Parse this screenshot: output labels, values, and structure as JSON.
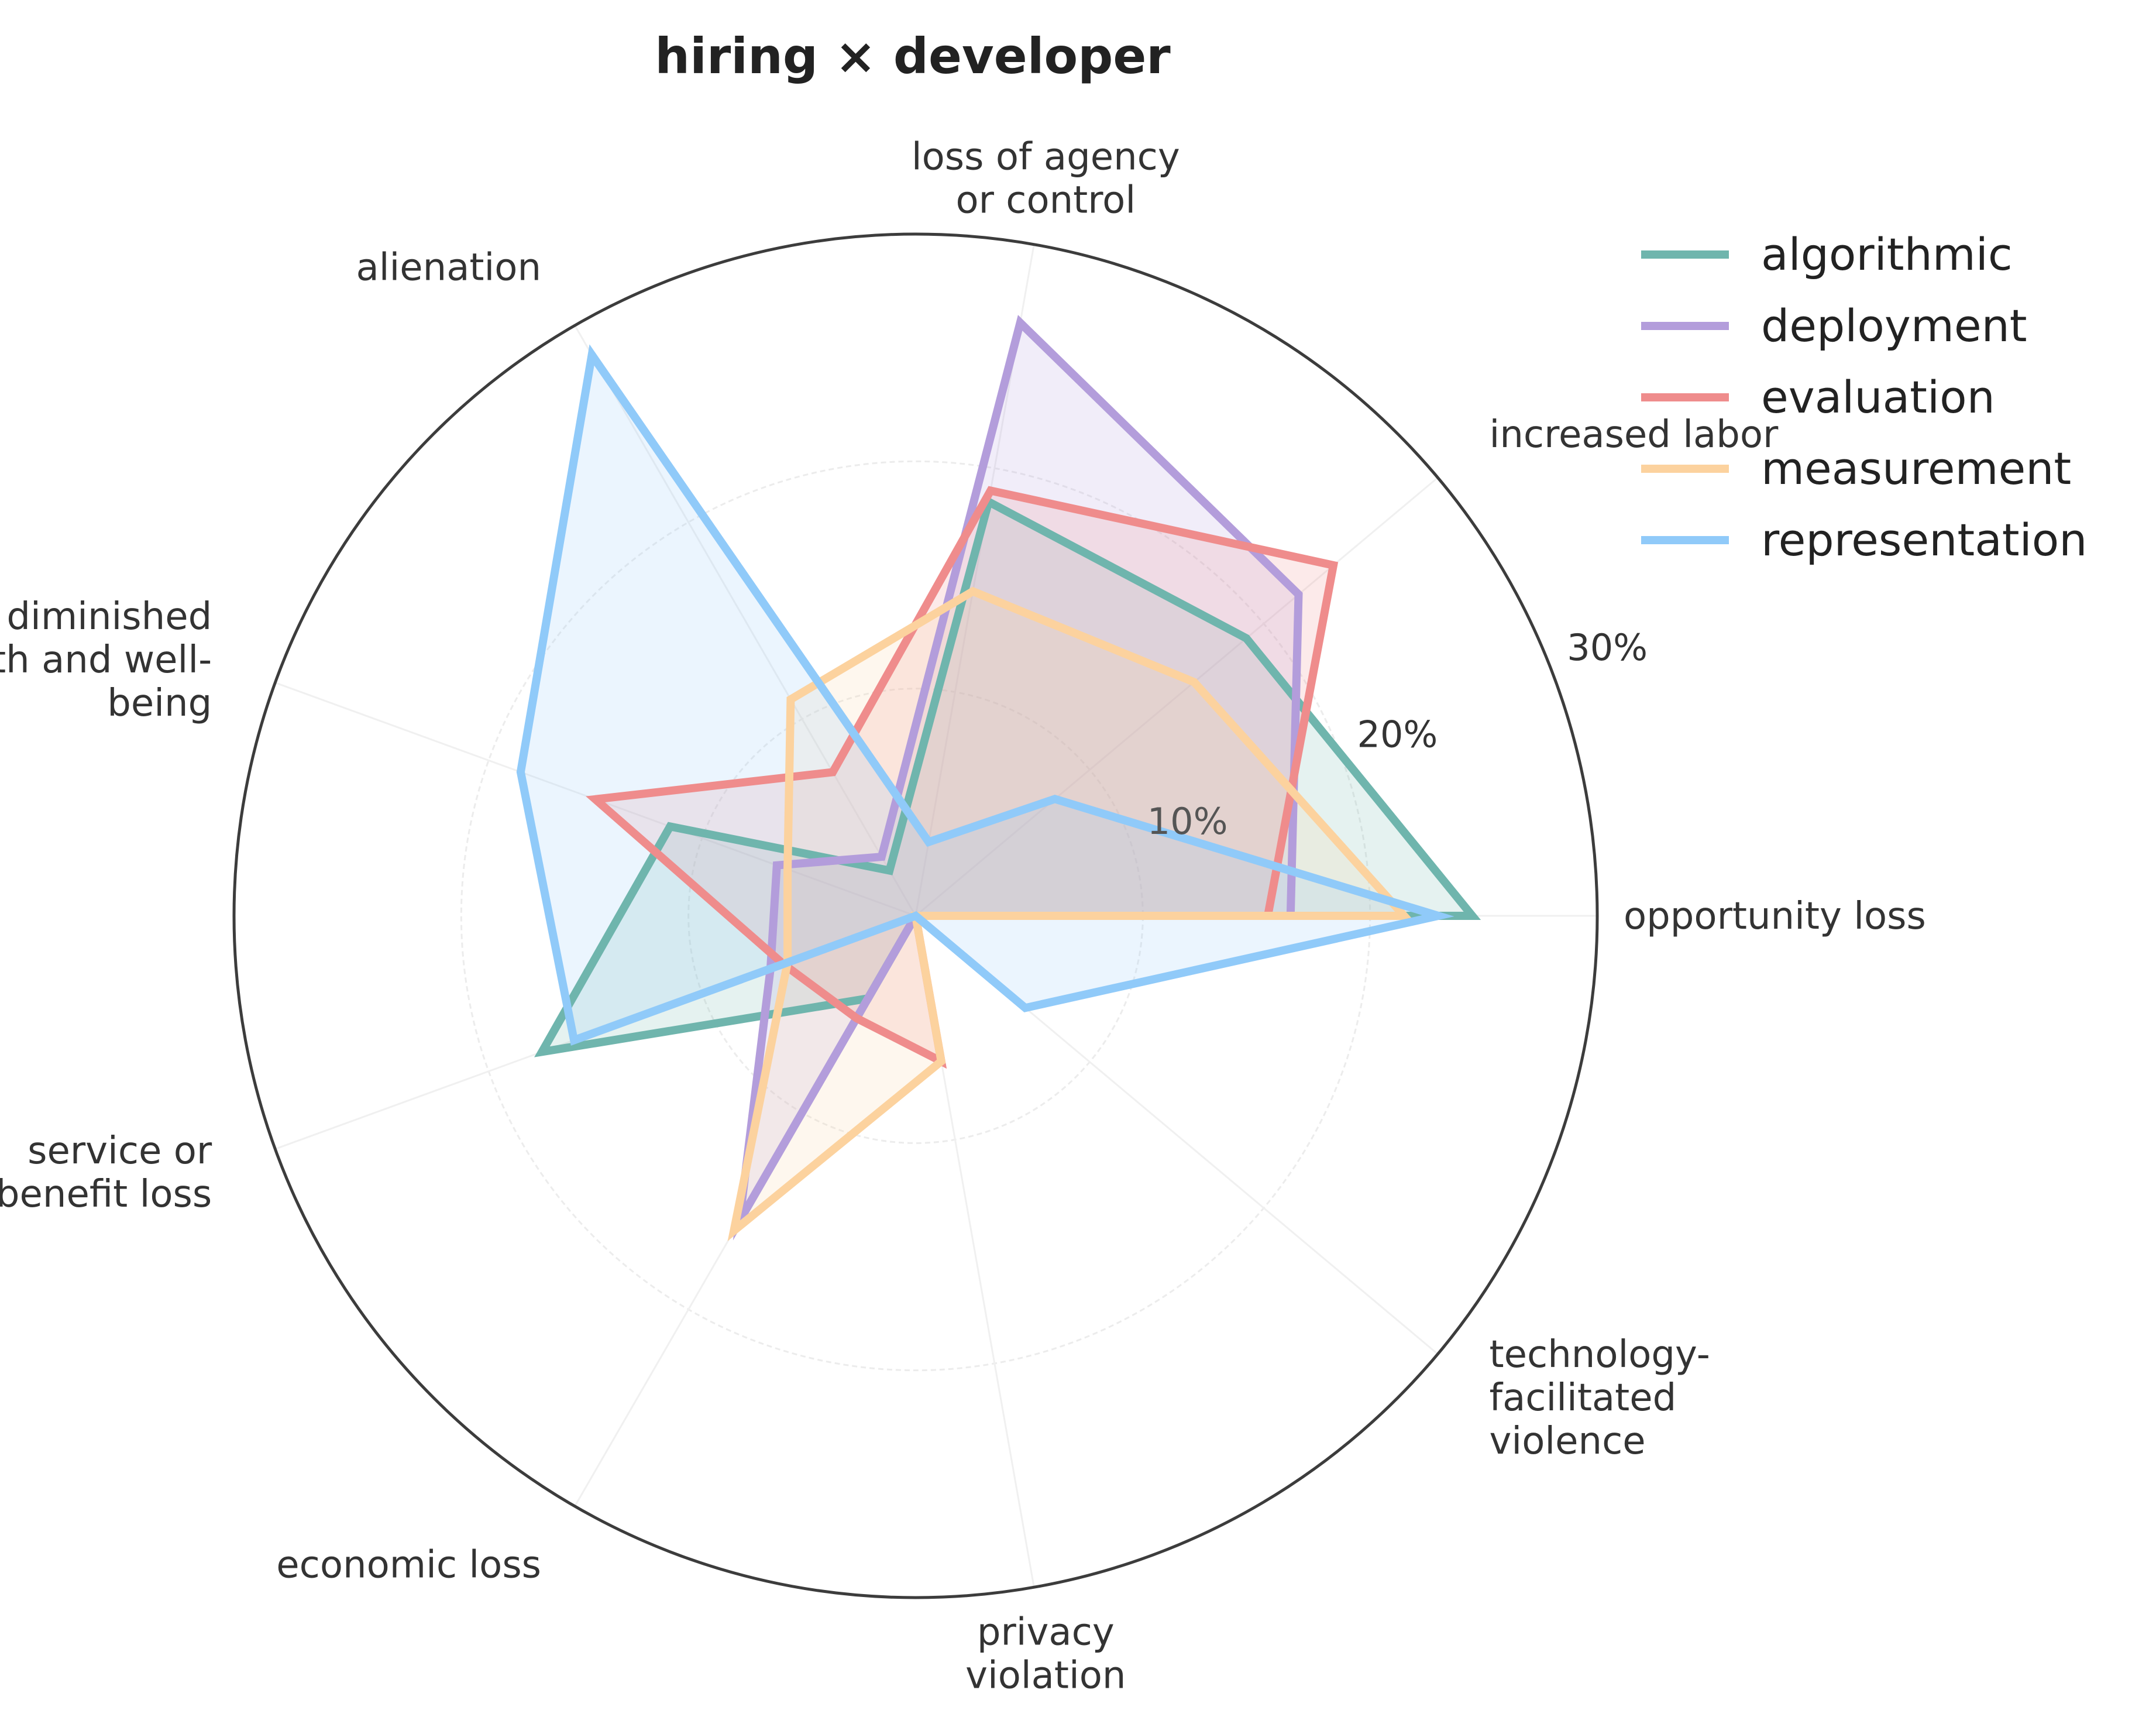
{
  "chart_data": {
    "type": "radar",
    "title": "hiring × developer",
    "axes": [
      "opportunity loss",
      "increased labor",
      "loss of agency\nor control",
      "alienation",
      "diminished\nhealth and well-\nbeing",
      "service or\nbenefit loss",
      "economic loss",
      "privacy\nviolation",
      "technology-\nfacilitated\nviolence"
    ],
    "radial_ticks": [
      {
        "value": 10,
        "label": "10%"
      },
      {
        "value": 20,
        "label": "20%"
      },
      {
        "value": 30,
        "label": "30%"
      }
    ],
    "rmax": 30,
    "legend_position": "top-right",
    "grid": true,
    "series": [
      {
        "name": "algorithmic",
        "color": "#6fb5ad",
        "values": [
          24.5,
          19.0,
          18.5,
          2.3,
          11.5,
          17.5,
          4.2,
          0.0,
          0.0
        ]
      },
      {
        "name": "deployment",
        "color": "#b39ddb",
        "values": [
          16.5,
          22.0,
          26.5,
          3.0,
          6.5,
          6.8,
          15.5,
          0.0,
          0.0
        ]
      },
      {
        "name": "evaluation",
        "color": "#ef8c8c",
        "values": [
          15.5,
          24.0,
          19.0,
          7.3,
          15.0,
          6.2,
          5.2,
          6.5,
          0.0
        ]
      },
      {
        "name": "measurement",
        "color": "#fcd29e",
        "values": [
          21.5,
          16.0,
          14.5,
          11.0,
          6.0,
          6.0,
          16.0,
          6.5,
          0.0
        ]
      },
      {
        "name": "representation",
        "color": "#90caf9",
        "values": [
          23.0,
          8.0,
          3.3,
          28.5,
          18.5,
          16.0,
          0.0,
          0.0,
          6.3
        ]
      }
    ]
  }
}
